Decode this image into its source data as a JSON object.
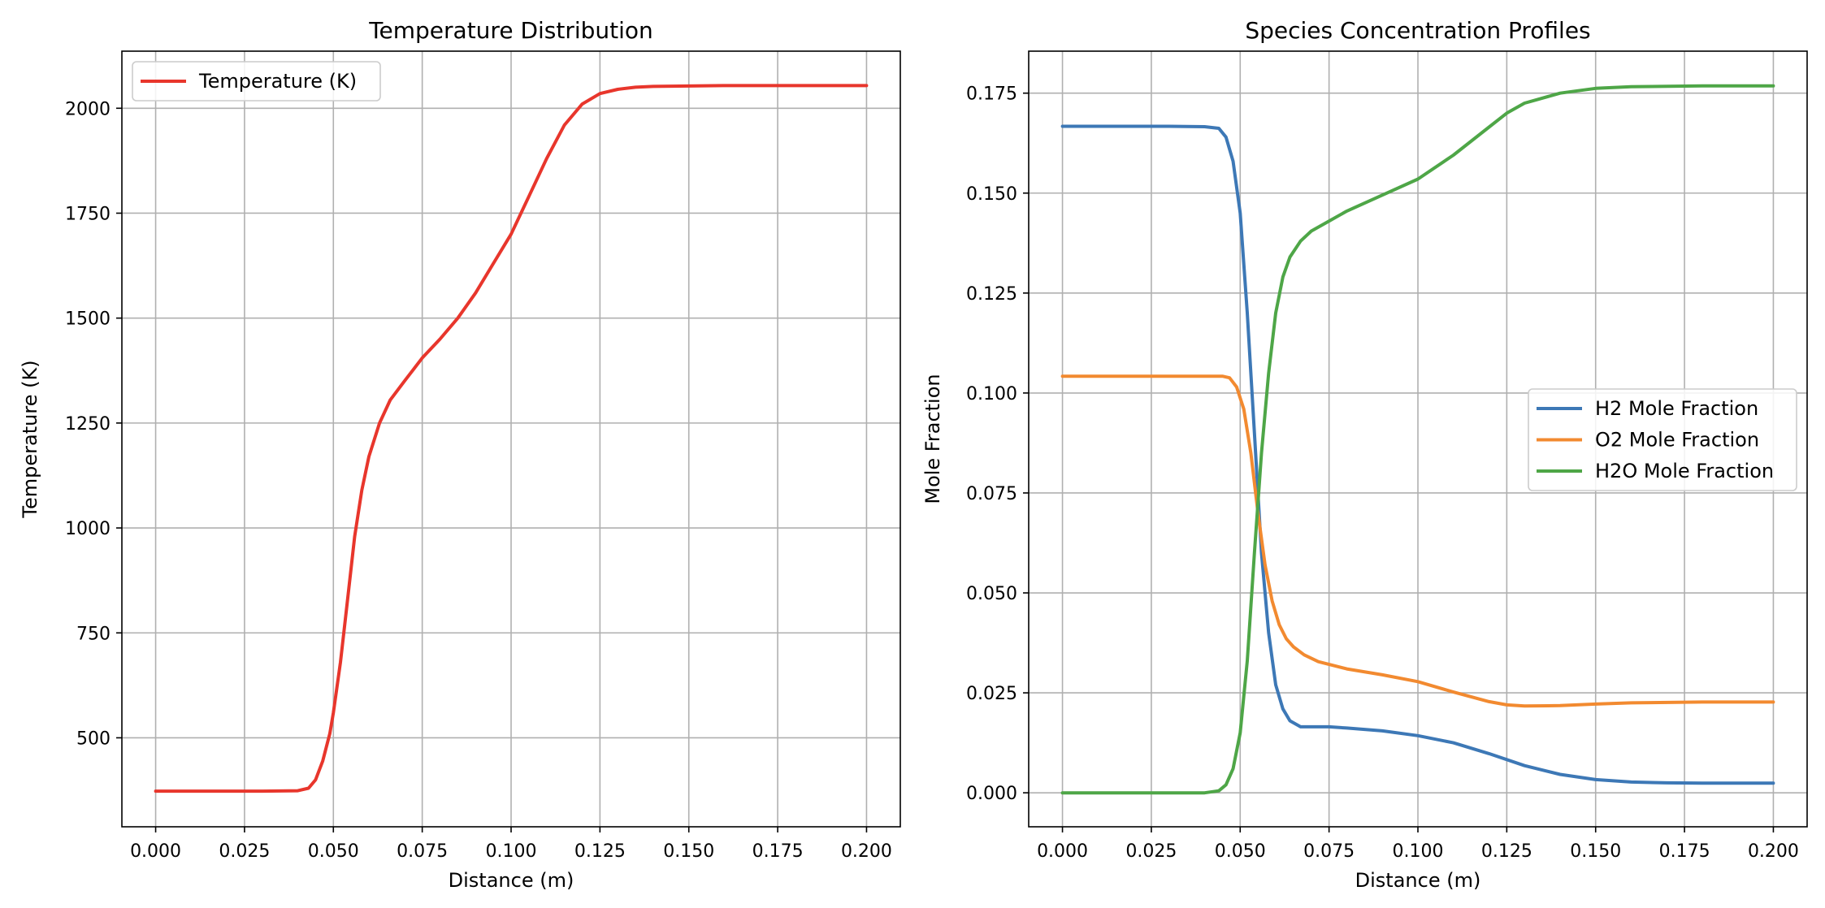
{
  "chart_data": [
    {
      "type": "line",
      "title": "Temperature Distribution",
      "xlabel": "Distance (m)",
      "ylabel": "Temperature (K)",
      "xlim": [
        -0.0095,
        0.2095
      ],
      "ylim": [
        288,
        2136
      ],
      "xticks": [
        "0.000",
        "0.025",
        "0.050",
        "0.075",
        "0.100",
        "0.125",
        "0.150",
        "0.175",
        "0.200"
      ],
      "xtick_values": [
        0,
        0.025,
        0.05,
        0.075,
        0.1,
        0.125,
        0.15,
        0.175,
        0.2
      ],
      "yticks": [
        "500",
        "750",
        "1000",
        "1250",
        "1500",
        "1750",
        "2000"
      ],
      "ytick_values": [
        500,
        750,
        1000,
        1250,
        1500,
        1750,
        2000
      ],
      "grid": true,
      "legend_position": "upper left",
      "series": [
        {
          "name": "Temperature (K)",
          "color": "#e8362c",
          "x": [
            0,
            0.01,
            0.02,
            0.03,
            0.04,
            0.043,
            0.045,
            0.047,
            0.049,
            0.05,
            0.052,
            0.054,
            0.056,
            0.058,
            0.06,
            0.063,
            0.066,
            0.07,
            0.075,
            0.08,
            0.085,
            0.09,
            0.095,
            0.1,
            0.105,
            0.11,
            0.115,
            0.12,
            0.125,
            0.13,
            0.135,
            0.14,
            0.15,
            0.16,
            0.18,
            0.2
          ],
          "y": [
            373,
            373,
            373,
            373,
            374,
            380,
            400,
            445,
            510,
            560,
            680,
            830,
            980,
            1090,
            1170,
            1250,
            1305,
            1350,
            1405,
            1450,
            1500,
            1560,
            1630,
            1700,
            1790,
            1880,
            1960,
            2010,
            2035,
            2045,
            2050,
            2052,
            2053,
            2054,
            2054,
            2054
          ]
        }
      ]
    },
    {
      "type": "line",
      "title": "Species Concentration Profiles",
      "xlabel": "Distance (m)",
      "ylabel": "Mole Fraction",
      "xlim": [
        -0.0095,
        0.2095
      ],
      "ylim": [
        -0.0085,
        0.1855
      ],
      "xticks": [
        "0.000",
        "0.025",
        "0.050",
        "0.075",
        "0.100",
        "0.125",
        "0.150",
        "0.175",
        "0.200"
      ],
      "xtick_values": [
        0,
        0.025,
        0.05,
        0.075,
        0.1,
        0.125,
        0.15,
        0.175,
        0.2
      ],
      "yticks": [
        "0.000",
        "0.025",
        "0.050",
        "0.075",
        "0.100",
        "0.125",
        "0.150",
        "0.175"
      ],
      "ytick_values": [
        0,
        0.025,
        0.05,
        0.075,
        0.1,
        0.125,
        0.15,
        0.175
      ],
      "grid": true,
      "legend_position": "center right",
      "series": [
        {
          "name": "H2 Mole Fraction",
          "color": "#3d78b6",
          "x": [
            0,
            0.01,
            0.02,
            0.03,
            0.04,
            0.044,
            0.046,
            0.048,
            0.05,
            0.052,
            0.054,
            0.056,
            0.058,
            0.06,
            0.062,
            0.064,
            0.067,
            0.07,
            0.075,
            0.08,
            0.09,
            0.1,
            0.11,
            0.12,
            0.13,
            0.14,
            0.15,
            0.16,
            0.17,
            0.18,
            0.2
          ],
          "y": [
            0.1667,
            0.1667,
            0.1667,
            0.1667,
            0.1666,
            0.1662,
            0.164,
            0.158,
            0.145,
            0.12,
            0.09,
            0.06,
            0.04,
            0.027,
            0.021,
            0.018,
            0.0165,
            0.0165,
            0.0165,
            0.0162,
            0.0155,
            0.0143,
            0.0125,
            0.0098,
            0.0068,
            0.0046,
            0.0033,
            0.0027,
            0.0025,
            0.0024,
            0.0024
          ]
        },
        {
          "name": "O2 Mole Fraction",
          "color": "#f28a30",
          "x": [
            0,
            0.01,
            0.02,
            0.03,
            0.04,
            0.045,
            0.047,
            0.049,
            0.051,
            0.053,
            0.055,
            0.057,
            0.059,
            0.061,
            0.063,
            0.065,
            0.068,
            0.072,
            0.08,
            0.09,
            0.1,
            0.11,
            0.12,
            0.125,
            0.13,
            0.14,
            0.15,
            0.16,
            0.18,
            0.2
          ],
          "y": [
            0.1042,
            0.1042,
            0.1042,
            0.1042,
            0.1042,
            0.1042,
            0.1038,
            0.1015,
            0.096,
            0.085,
            0.07,
            0.057,
            0.048,
            0.042,
            0.0385,
            0.0365,
            0.0345,
            0.0328,
            0.031,
            0.0295,
            0.0278,
            0.0252,
            0.0228,
            0.022,
            0.0217,
            0.0218,
            0.0222,
            0.0225,
            0.0227,
            0.0227
          ]
        },
        {
          "name": "H2O Mole Fraction",
          "color": "#4ea647",
          "x": [
            0,
            0.01,
            0.02,
            0.03,
            0.04,
            0.044,
            0.046,
            0.048,
            0.05,
            0.052,
            0.054,
            0.056,
            0.058,
            0.06,
            0.062,
            0.064,
            0.067,
            0.07,
            0.075,
            0.08,
            0.09,
            0.1,
            0.11,
            0.12,
            0.125,
            0.13,
            0.14,
            0.15,
            0.16,
            0.18,
            0.2
          ],
          "y": [
            0,
            0,
            0,
            0,
            0,
            0.0005,
            0.002,
            0.006,
            0.015,
            0.033,
            0.06,
            0.085,
            0.105,
            0.12,
            0.129,
            0.134,
            0.138,
            0.1405,
            0.143,
            0.1455,
            0.1495,
            0.1535,
            0.1595,
            0.1665,
            0.17,
            0.1725,
            0.175,
            0.1762,
            0.1766,
            0.1768,
            0.1768
          ]
        }
      ]
    }
  ]
}
